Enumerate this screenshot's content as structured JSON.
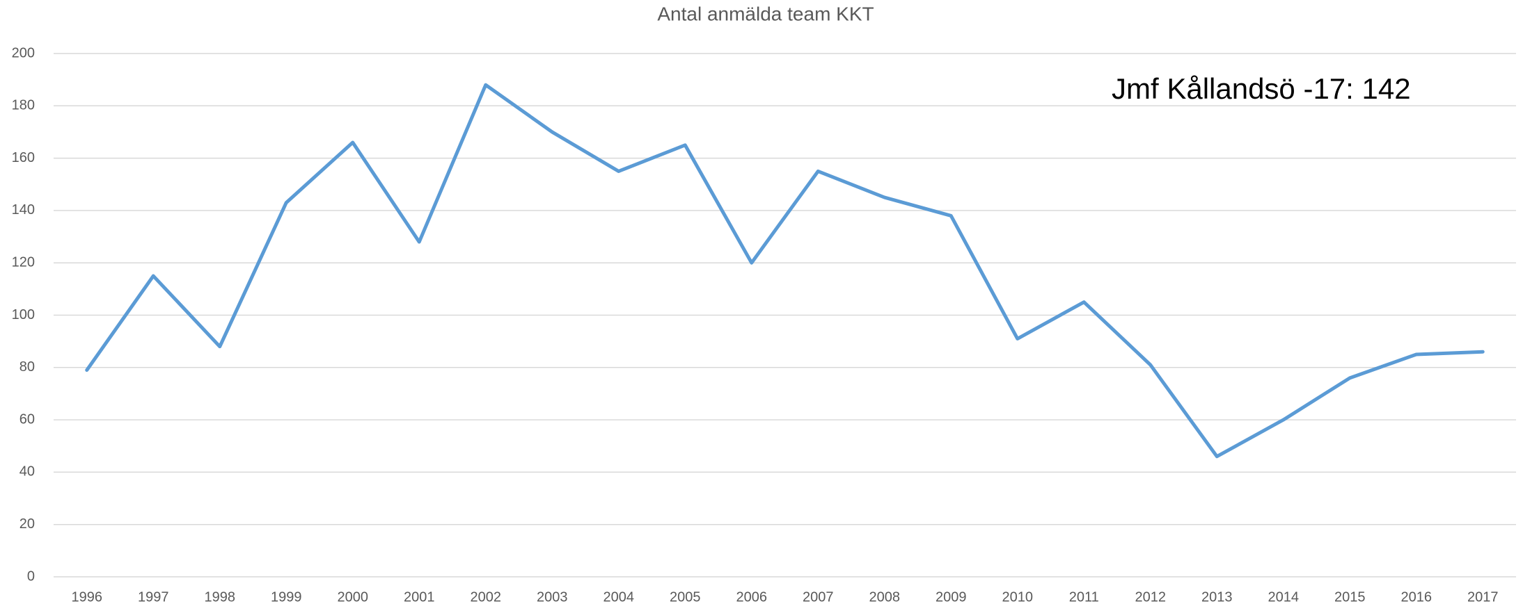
{
  "chart_data": {
    "type": "line",
    "title": "Antal anmälda team KKT",
    "annotation": "Jmf Kållandsö -17: 142",
    "categories": [
      "1996",
      "1997",
      "1998",
      "1999",
      "2000",
      "2001",
      "2002",
      "2003",
      "2004",
      "2005",
      "2006",
      "2007",
      "2008",
      "2009",
      "2010",
      "2011",
      "2012",
      "2013",
      "2014",
      "2015",
      "2016",
      "2017"
    ],
    "series": [
      {
        "name": "Antal anmälda team",
        "color": "#5b9bd5",
        "values": [
          79,
          115,
          88,
          143,
          166,
          128,
          188,
          170,
          155,
          165,
          120,
          155,
          145,
          138,
          91,
          105,
          81,
          46,
          60,
          76,
          85,
          86
        ]
      }
    ],
    "ylim": [
      0,
      200
    ],
    "yticks": [
      0,
      20,
      40,
      60,
      80,
      100,
      120,
      140,
      160,
      180,
      200
    ],
    "grid": true
  }
}
